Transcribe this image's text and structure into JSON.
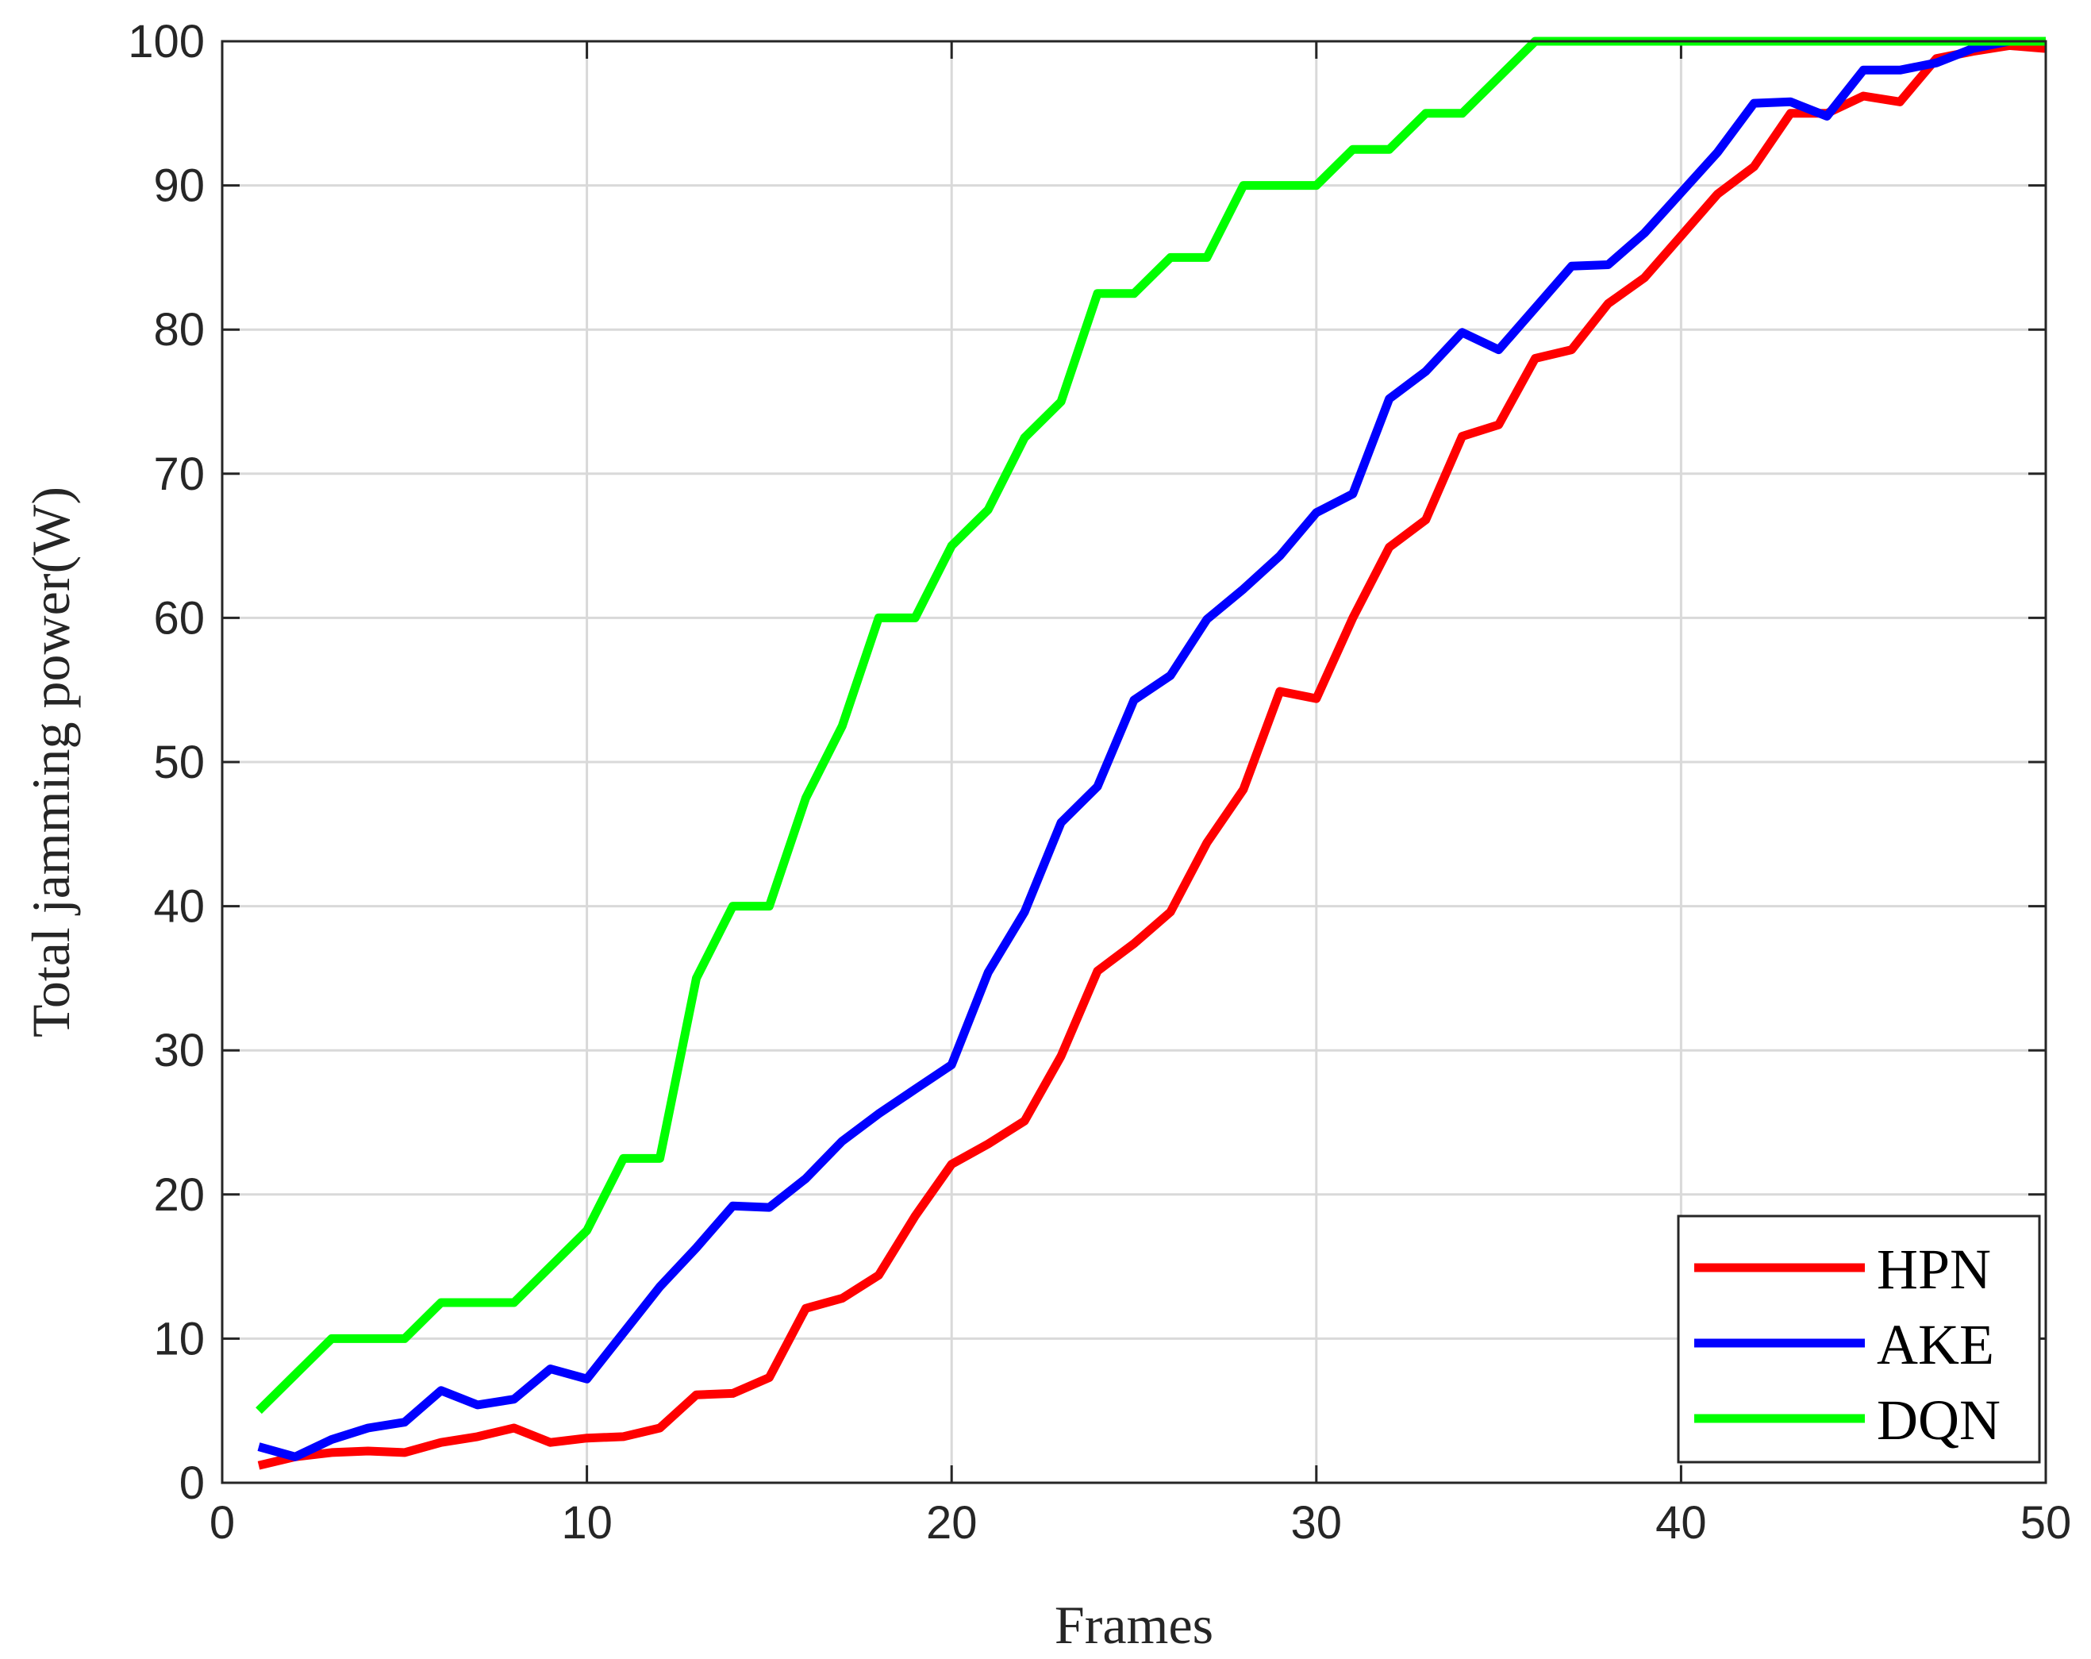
{
  "chart_data": {
    "type": "line",
    "xlabel": "Frames",
    "ylabel": "Total jamming power(W)",
    "xlim": [
      0,
      50
    ],
    "ylim": [
      0,
      100
    ],
    "xticks": [
      "0",
      "10",
      "20",
      "30",
      "40",
      "50"
    ],
    "yticks": [
      "0",
      "10",
      "20",
      "30",
      "40",
      "50",
      "60",
      "70",
      "80",
      "90",
      "100"
    ],
    "grid": true,
    "legend_position": "bottom-right",
    "x": [
      1,
      2,
      3,
      4,
      5,
      6,
      7,
      8,
      9,
      10,
      11,
      12,
      13,
      14,
      15,
      16,
      17,
      18,
      19,
      20,
      21,
      22,
      23,
      24,
      25,
      26,
      27,
      28,
      29,
      30,
      31,
      32,
      33,
      34,
      35,
      36,
      37,
      38,
      39,
      40,
      41,
      42,
      43,
      44,
      45,
      46,
      47,
      48,
      49,
      50
    ],
    "series": [
      {
        "name": "HPN",
        "color": "#ff0000",
        "values": [
          1.2,
          1.8,
          2.1,
          2.2,
          2.1,
          2.8,
          3.2,
          3.8,
          2.8,
          3.1,
          3.2,
          3.8,
          6.1,
          6.2,
          7.3,
          12.1,
          12.8,
          14.4,
          18.5,
          22.1,
          23.5,
          25.1,
          29.6,
          35.5,
          37.4,
          39.6,
          44.4,
          48.1,
          54.9,
          54.4,
          60.0,
          64.9,
          66.8,
          72.6,
          73.4,
          78.0,
          78.6,
          81.8,
          83.6,
          86.5,
          89.4,
          91.3,
          95.0,
          95.0,
          96.2,
          95.8,
          98.8,
          99.3,
          99.7,
          99.5
        ]
      },
      {
        "name": "AKE",
        "color": "#0000ff",
        "values": [
          2.5,
          1.8,
          3.0,
          3.8,
          4.2,
          6.4,
          5.4,
          5.8,
          7.9,
          7.2,
          10.4,
          13.6,
          16.3,
          19.2,
          19.1,
          21.1,
          23.7,
          25.6,
          27.3,
          29.0,
          35.4,
          39.6,
          45.8,
          48.3,
          54.3,
          56.0,
          59.9,
          62.0,
          64.3,
          67.3,
          68.6,
          75.2,
          77.1,
          79.8,
          78.6,
          81.5,
          84.4,
          84.5,
          86.7,
          89.5,
          92.3,
          95.7,
          95.8,
          94.8,
          98.0,
          98.0,
          98.5,
          99.5,
          100.0,
          100.0
        ]
      },
      {
        "name": "DQN",
        "color": "#00ff00",
        "values": [
          5.0,
          7.5,
          10.0,
          10.0,
          10.0,
          12.5,
          12.5,
          12.5,
          15.0,
          17.5,
          22.5,
          22.5,
          35.0,
          40.0,
          40.0,
          47.5,
          52.5,
          60.0,
          60.0,
          65.0,
          67.5,
          72.5,
          75.0,
          82.5,
          82.5,
          85.0,
          85.0,
          90.0,
          90.0,
          90.0,
          92.5,
          92.5,
          95.0,
          95.0,
          97.5,
          100.0,
          100.0,
          100.0,
          100.0,
          100.0,
          100.0,
          100.0,
          100.0,
          100.0,
          100.0,
          100.0,
          100.0,
          100.0,
          100.0,
          100.0
        ]
      }
    ]
  }
}
